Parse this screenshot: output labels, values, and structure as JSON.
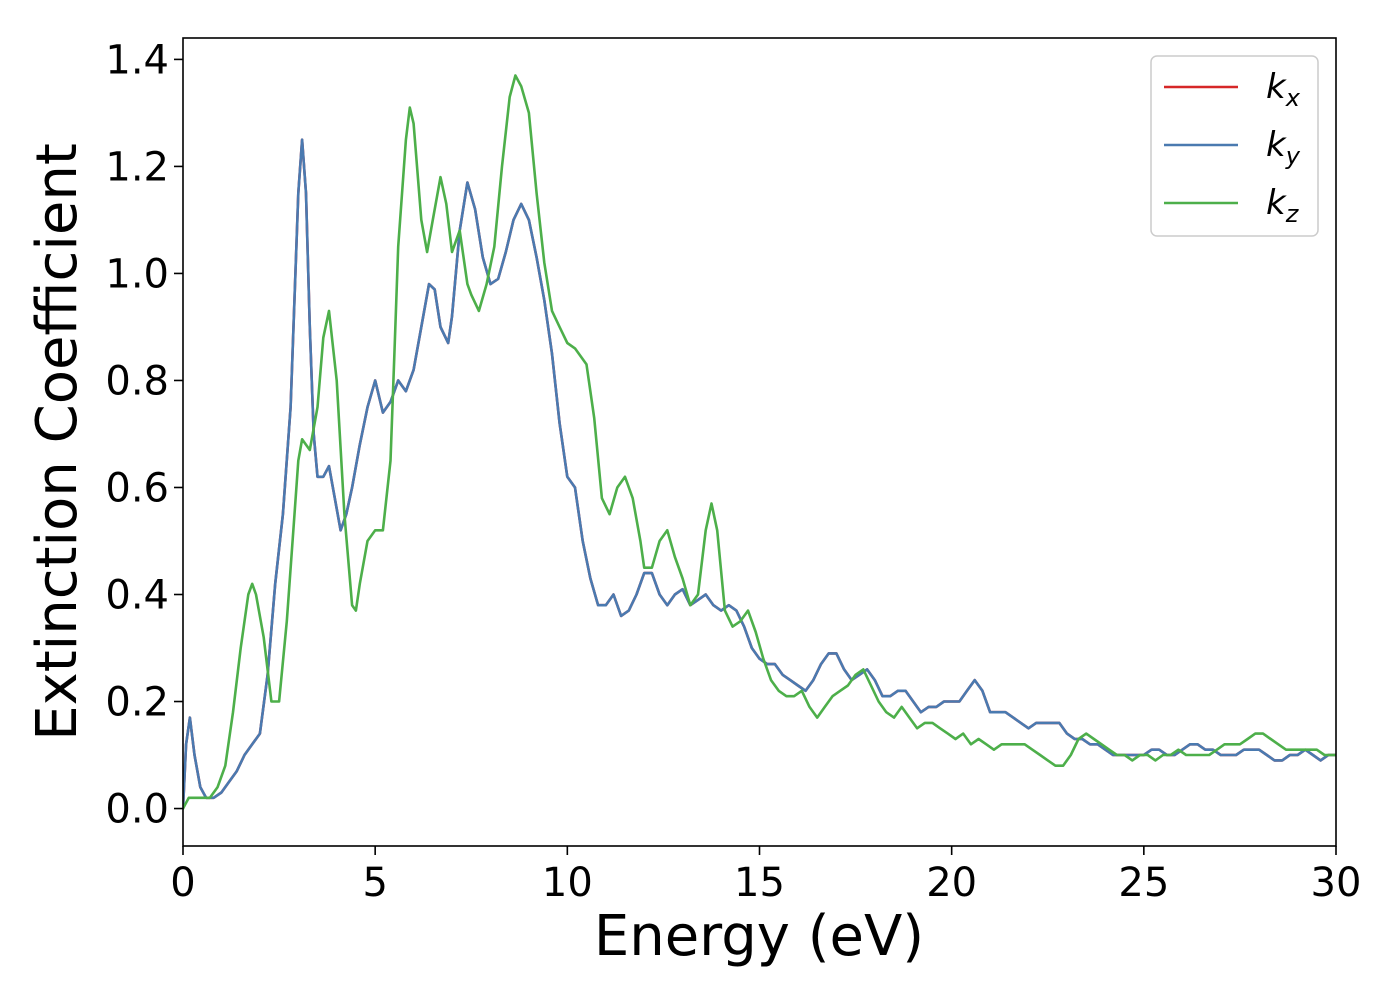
{
  "chart_data": {
    "type": "line",
    "xlabel": "Energy (eV)",
    "ylabel": "Extinction Coefficient",
    "xlim": [
      0,
      30
    ],
    "ylim": [
      -0.07,
      1.44
    ],
    "xticks": [
      0,
      5,
      10,
      15,
      20,
      25,
      30
    ],
    "yticks": [
      0.0,
      0.2,
      0.4,
      0.6,
      0.8,
      1.0,
      1.2,
      1.4
    ],
    "xtick_labels": [
      "0",
      "5",
      "10",
      "15",
      "20",
      "25",
      "30"
    ],
    "ytick_labels": [
      "0.0",
      "0.2",
      "0.4",
      "0.6",
      "0.8",
      "1.0",
      "1.2",
      "1.4"
    ],
    "grid": false,
    "legend_position": "top-right",
    "series": [
      {
        "name": "k",
        "subscript": "x",
        "color": "#d62728",
        "x": [
          0,
          0.08,
          0.18,
          0.3,
          0.45,
          0.6,
          0.8,
          1.0,
          1.2,
          1.4,
          1.6,
          1.8,
          2.0,
          2.2,
          2.4,
          2.6,
          2.8,
          3.0,
          3.1,
          3.2,
          3.3,
          3.4,
          3.5,
          3.65,
          3.8,
          3.95,
          4.1,
          4.25,
          4.4,
          4.6,
          4.8,
          5.0,
          5.2,
          5.4,
          5.6,
          5.8,
          6.0,
          6.2,
          6.4,
          6.55,
          6.7,
          6.9,
          7.0,
          7.2,
          7.4,
          7.6,
          7.8,
          8.0,
          8.2,
          8.4,
          8.6,
          8.8,
          9.0,
          9.2,
          9.4,
          9.6,
          9.8,
          10.0,
          10.2,
          10.4,
          10.6,
          10.8,
          11.0,
          11.2,
          11.4,
          11.6,
          11.8,
          12.0,
          12.2,
          12.4,
          12.6,
          12.8,
          13.0,
          13.2,
          13.4,
          13.6,
          13.8,
          14.0,
          14.2,
          14.4,
          14.6,
          14.8,
          15.0,
          15.2,
          15.4,
          15.6,
          15.8,
          16.0,
          16.2,
          16.4,
          16.6,
          16.8,
          17.0,
          17.2,
          17.4,
          17.6,
          17.8,
          18.0,
          18.2,
          18.4,
          18.6,
          18.8,
          19.0,
          19.2,
          19.4,
          19.6,
          19.8,
          20.0,
          20.2,
          20.4,
          20.6,
          20.8,
          21.0,
          21.2,
          21.4,
          21.6,
          21.8,
          22.0,
          22.2,
          22.4,
          22.6,
          22.8,
          23.0,
          23.2,
          23.4,
          23.6,
          23.8,
          24.0,
          24.2,
          24.4,
          24.6,
          24.8,
          25.0,
          25.2,
          25.4,
          25.6,
          25.8,
          26.0,
          26.2,
          26.4,
          26.6,
          26.8,
          27.0,
          27.2,
          27.4,
          27.6,
          27.8,
          28.0,
          28.2,
          28.4,
          28.6,
          28.8,
          29.0,
          29.2,
          29.4,
          29.6,
          29.8,
          30.0
        ],
        "values": [
          0.0,
          0.12,
          0.17,
          0.1,
          0.04,
          0.02,
          0.02,
          0.03,
          0.05,
          0.07,
          0.1,
          0.12,
          0.14,
          0.25,
          0.42,
          0.55,
          0.75,
          1.15,
          1.25,
          1.15,
          0.9,
          0.7,
          0.62,
          0.62,
          0.64,
          0.58,
          0.52,
          0.55,
          0.6,
          0.68,
          0.75,
          0.8,
          0.74,
          0.76,
          0.8,
          0.78,
          0.82,
          0.9,
          0.98,
          0.97,
          0.9,
          0.87,
          0.92,
          1.08,
          1.17,
          1.12,
          1.03,
          0.98,
          0.99,
          1.04,
          1.1,
          1.13,
          1.1,
          1.03,
          0.95,
          0.85,
          0.72,
          0.62,
          0.6,
          0.5,
          0.43,
          0.38,
          0.38,
          0.4,
          0.36,
          0.37,
          0.4,
          0.44,
          0.44,
          0.4,
          0.38,
          0.4,
          0.41,
          0.38,
          0.39,
          0.4,
          0.38,
          0.37,
          0.38,
          0.37,
          0.34,
          0.3,
          0.28,
          0.27,
          0.27,
          0.25,
          0.24,
          0.23,
          0.22,
          0.24,
          0.27,
          0.29,
          0.29,
          0.26,
          0.24,
          0.25,
          0.26,
          0.24,
          0.21,
          0.21,
          0.22,
          0.22,
          0.2,
          0.18,
          0.19,
          0.19,
          0.2,
          0.2,
          0.2,
          0.22,
          0.24,
          0.22,
          0.18,
          0.18,
          0.18,
          0.17,
          0.16,
          0.15,
          0.16,
          0.16,
          0.16,
          0.16,
          0.14,
          0.13,
          0.13,
          0.12,
          0.12,
          0.11,
          0.1,
          0.1,
          0.1,
          0.1,
          0.1,
          0.11,
          0.11,
          0.1,
          0.1,
          0.11,
          0.12,
          0.12,
          0.11,
          0.11,
          0.1,
          0.1,
          0.1,
          0.11,
          0.11,
          0.11,
          0.1,
          0.09,
          0.09,
          0.1,
          0.1,
          0.11,
          0.1,
          0.09,
          0.1,
          0.1
        ]
      },
      {
        "name": "k",
        "subscript": "y",
        "color": "#4a7ab0",
        "x": [
          0,
          0.08,
          0.18,
          0.3,
          0.45,
          0.6,
          0.8,
          1.0,
          1.2,
          1.4,
          1.6,
          1.8,
          2.0,
          2.2,
          2.4,
          2.6,
          2.8,
          3.0,
          3.1,
          3.2,
          3.3,
          3.4,
          3.5,
          3.65,
          3.8,
          3.95,
          4.1,
          4.25,
          4.4,
          4.6,
          4.8,
          5.0,
          5.2,
          5.4,
          5.6,
          5.8,
          6.0,
          6.2,
          6.4,
          6.55,
          6.7,
          6.9,
          7.0,
          7.2,
          7.4,
          7.6,
          7.8,
          8.0,
          8.2,
          8.4,
          8.6,
          8.8,
          9.0,
          9.2,
          9.4,
          9.6,
          9.8,
          10.0,
          10.2,
          10.4,
          10.6,
          10.8,
          11.0,
          11.2,
          11.4,
          11.6,
          11.8,
          12.0,
          12.2,
          12.4,
          12.6,
          12.8,
          13.0,
          13.2,
          13.4,
          13.6,
          13.8,
          14.0,
          14.2,
          14.4,
          14.6,
          14.8,
          15.0,
          15.2,
          15.4,
          15.6,
          15.8,
          16.0,
          16.2,
          16.4,
          16.6,
          16.8,
          17.0,
          17.2,
          17.4,
          17.6,
          17.8,
          18.0,
          18.2,
          18.4,
          18.6,
          18.8,
          19.0,
          19.2,
          19.4,
          19.6,
          19.8,
          20.0,
          20.2,
          20.4,
          20.6,
          20.8,
          21.0,
          21.2,
          21.4,
          21.6,
          21.8,
          22.0,
          22.2,
          22.4,
          22.6,
          22.8,
          23.0,
          23.2,
          23.4,
          23.6,
          23.8,
          24.0,
          24.2,
          24.4,
          24.6,
          24.8,
          25.0,
          25.2,
          25.4,
          25.6,
          25.8,
          26.0,
          26.2,
          26.4,
          26.6,
          26.8,
          27.0,
          27.2,
          27.4,
          27.6,
          27.8,
          28.0,
          28.2,
          28.4,
          28.6,
          28.8,
          29.0,
          29.2,
          29.4,
          29.6,
          29.8,
          30.0
        ],
        "values": [
          0.0,
          0.12,
          0.17,
          0.1,
          0.04,
          0.02,
          0.02,
          0.03,
          0.05,
          0.07,
          0.1,
          0.12,
          0.14,
          0.25,
          0.42,
          0.55,
          0.75,
          1.15,
          1.25,
          1.15,
          0.9,
          0.7,
          0.62,
          0.62,
          0.64,
          0.58,
          0.52,
          0.55,
          0.6,
          0.68,
          0.75,
          0.8,
          0.74,
          0.76,
          0.8,
          0.78,
          0.82,
          0.9,
          0.98,
          0.97,
          0.9,
          0.87,
          0.92,
          1.08,
          1.17,
          1.12,
          1.03,
          0.98,
          0.99,
          1.04,
          1.1,
          1.13,
          1.1,
          1.03,
          0.95,
          0.85,
          0.72,
          0.62,
          0.6,
          0.5,
          0.43,
          0.38,
          0.38,
          0.4,
          0.36,
          0.37,
          0.4,
          0.44,
          0.44,
          0.4,
          0.38,
          0.4,
          0.41,
          0.38,
          0.39,
          0.4,
          0.38,
          0.37,
          0.38,
          0.37,
          0.34,
          0.3,
          0.28,
          0.27,
          0.27,
          0.25,
          0.24,
          0.23,
          0.22,
          0.24,
          0.27,
          0.29,
          0.29,
          0.26,
          0.24,
          0.25,
          0.26,
          0.24,
          0.21,
          0.21,
          0.22,
          0.22,
          0.2,
          0.18,
          0.19,
          0.19,
          0.2,
          0.2,
          0.2,
          0.22,
          0.24,
          0.22,
          0.18,
          0.18,
          0.18,
          0.17,
          0.16,
          0.15,
          0.16,
          0.16,
          0.16,
          0.16,
          0.14,
          0.13,
          0.13,
          0.12,
          0.12,
          0.11,
          0.1,
          0.1,
          0.1,
          0.1,
          0.1,
          0.11,
          0.11,
          0.1,
          0.1,
          0.11,
          0.12,
          0.12,
          0.11,
          0.11,
          0.1,
          0.1,
          0.1,
          0.11,
          0.11,
          0.11,
          0.1,
          0.09,
          0.09,
          0.1,
          0.1,
          0.11,
          0.1,
          0.09,
          0.1,
          0.1
        ]
      },
      {
        "name": "k",
        "subscript": "z",
        "color": "#4daf4a",
        "x": [
          0,
          0.15,
          0.3,
          0.5,
          0.7,
          0.9,
          1.1,
          1.3,
          1.5,
          1.7,
          1.8,
          1.9,
          2.1,
          2.3,
          2.5,
          2.7,
          2.9,
          3.0,
          3.1,
          3.3,
          3.5,
          3.65,
          3.8,
          4.0,
          4.2,
          4.4,
          4.5,
          4.6,
          4.8,
          5.0,
          5.2,
          5.4,
          5.5,
          5.6,
          5.8,
          5.9,
          6.0,
          6.2,
          6.35,
          6.5,
          6.7,
          6.85,
          7.0,
          7.2,
          7.4,
          7.5,
          7.7,
          7.9,
          8.1,
          8.3,
          8.5,
          8.65,
          8.8,
          9.0,
          9.2,
          9.4,
          9.6,
          9.8,
          10.0,
          10.2,
          10.5,
          10.7,
          10.9,
          11.1,
          11.3,
          11.5,
          11.7,
          11.9,
          12.0,
          12.2,
          12.4,
          12.6,
          12.8,
          13.0,
          13.2,
          13.4,
          13.6,
          13.75,
          13.9,
          14.1,
          14.3,
          14.5,
          14.7,
          14.9,
          15.1,
          15.3,
          15.5,
          15.7,
          15.9,
          16.1,
          16.3,
          16.5,
          16.7,
          16.9,
          17.1,
          17.3,
          17.5,
          17.7,
          17.9,
          18.1,
          18.3,
          18.5,
          18.7,
          18.9,
          19.1,
          19.3,
          19.5,
          19.7,
          19.9,
          20.1,
          20.3,
          20.5,
          20.7,
          20.9,
          21.1,
          21.3,
          21.5,
          21.7,
          21.9,
          22.1,
          22.3,
          22.5,
          22.7,
          22.9,
          23.1,
          23.3,
          23.5,
          23.7,
          23.9,
          24.1,
          24.3,
          24.5,
          24.7,
          24.9,
          25.1,
          25.3,
          25.5,
          25.7,
          25.9,
          26.1,
          26.3,
          26.5,
          26.7,
          26.9,
          27.1,
          27.3,
          27.5,
          27.7,
          27.9,
          28.1,
          28.3,
          28.5,
          28.7,
          28.9,
          29.1,
          29.3,
          29.5,
          29.7,
          30.0
        ],
        "values": [
          0.0,
          0.02,
          0.02,
          0.02,
          0.02,
          0.04,
          0.08,
          0.18,
          0.3,
          0.4,
          0.42,
          0.4,
          0.32,
          0.2,
          0.2,
          0.35,
          0.55,
          0.65,
          0.69,
          0.67,
          0.75,
          0.88,
          0.93,
          0.8,
          0.55,
          0.38,
          0.37,
          0.42,
          0.5,
          0.52,
          0.52,
          0.65,
          0.85,
          1.05,
          1.25,
          1.31,
          1.28,
          1.1,
          1.04,
          1.1,
          1.18,
          1.13,
          1.04,
          1.08,
          0.98,
          0.96,
          0.93,
          0.98,
          1.05,
          1.2,
          1.33,
          1.37,
          1.35,
          1.3,
          1.15,
          1.02,
          0.93,
          0.9,
          0.87,
          0.86,
          0.83,
          0.73,
          0.58,
          0.55,
          0.6,
          0.62,
          0.58,
          0.5,
          0.45,
          0.45,
          0.5,
          0.52,
          0.47,
          0.43,
          0.38,
          0.4,
          0.52,
          0.57,
          0.52,
          0.37,
          0.34,
          0.35,
          0.37,
          0.33,
          0.28,
          0.24,
          0.22,
          0.21,
          0.21,
          0.22,
          0.19,
          0.17,
          0.19,
          0.21,
          0.22,
          0.23,
          0.25,
          0.26,
          0.23,
          0.2,
          0.18,
          0.17,
          0.19,
          0.17,
          0.15,
          0.16,
          0.16,
          0.15,
          0.14,
          0.13,
          0.14,
          0.12,
          0.13,
          0.12,
          0.11,
          0.12,
          0.12,
          0.12,
          0.12,
          0.11,
          0.1,
          0.09,
          0.08,
          0.08,
          0.1,
          0.13,
          0.14,
          0.13,
          0.12,
          0.11,
          0.1,
          0.1,
          0.09,
          0.1,
          0.1,
          0.09,
          0.1,
          0.1,
          0.11,
          0.1,
          0.1,
          0.1,
          0.1,
          0.11,
          0.12,
          0.12,
          0.12,
          0.13,
          0.14,
          0.14,
          0.13,
          0.12,
          0.11,
          0.11,
          0.11,
          0.11,
          0.11,
          0.1,
          0.1
        ]
      }
    ]
  }
}
